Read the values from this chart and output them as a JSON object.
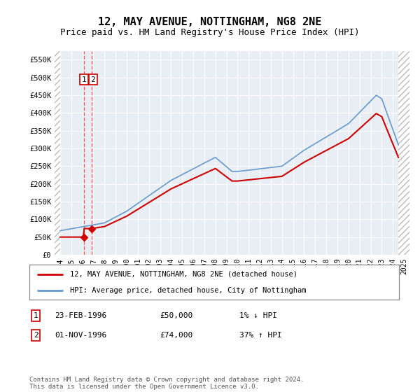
{
  "title": "12, MAY AVENUE, NOTTINGHAM, NG8 2NE",
  "subtitle": "Price paid vs. HM Land Registry's House Price Index (HPI)",
  "legend_line1": "12, MAY AVENUE, NOTTINGHAM, NG8 2NE (detached house)",
  "legend_line2": "HPI: Average price, detached house, City of Nottingham",
  "sale_color": "#cc0000",
  "hpi_color": "#6699cc",
  "vline_color": "#ff4444",
  "sales": [
    {
      "date_x": 1996.14,
      "price": 50000,
      "label": "1"
    },
    {
      "date_x": 1996.83,
      "price": 74000,
      "label": "2"
    }
  ],
  "footnote": "Contains HM Land Registry data © Crown copyright and database right 2024.\nThis data is licensed under the Open Government Licence v3.0.",
  "table": [
    {
      "num": "1",
      "date": "23-FEB-1996",
      "price": "£50,000",
      "change": "1% ↓ HPI"
    },
    {
      "num": "2",
      "date": "01-NOV-1996",
      "price": "£74,000",
      "change": "37% ↑ HPI"
    }
  ],
  "ylim": [
    0,
    575000
  ],
  "xlim_start": 1993.5,
  "xlim_end": 2025.5,
  "yticks": [
    0,
    50000,
    100000,
    150000,
    200000,
    250000,
    300000,
    350000,
    400000,
    450000,
    500000,
    550000
  ],
  "ytick_labels": [
    "£0",
    "£50K",
    "£100K",
    "£150K",
    "£200K",
    "£250K",
    "£300K",
    "£350K",
    "£400K",
    "£450K",
    "£500K",
    "£550K"
  ],
  "xticks": [
    1994,
    1995,
    1996,
    1997,
    1998,
    1999,
    2000,
    2001,
    2002,
    2003,
    2004,
    2005,
    2006,
    2007,
    2008,
    2009,
    2010,
    2011,
    2012,
    2013,
    2014,
    2015,
    2016,
    2017,
    2018,
    2019,
    2020,
    2021,
    2022,
    2023,
    2024,
    2025
  ],
  "hatch_left_end": 1994.0,
  "hatch_right_start": 2024.5
}
